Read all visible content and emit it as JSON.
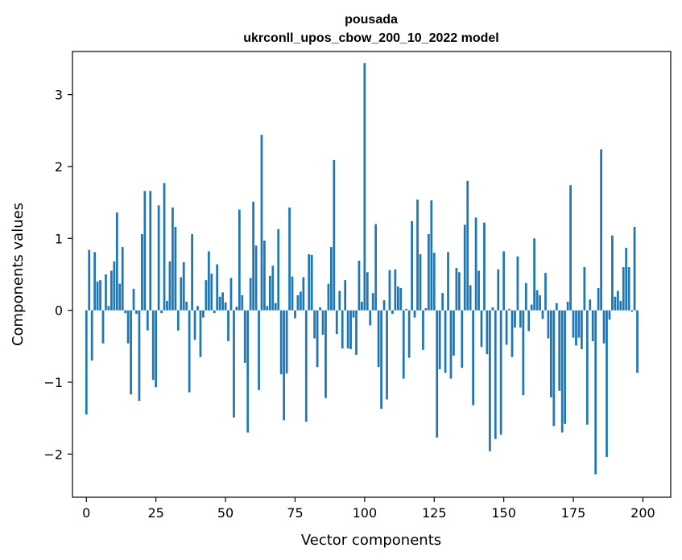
{
  "chart_data": {
    "type": "bar",
    "title": "pousada",
    "subtitle": "ukrconll_upos_cbow_200_10_2022 model",
    "xlabel": "Vector components",
    "ylabel": "Components values",
    "xlim": [
      -5,
      210
    ],
    "ylim": [
      -2.6,
      3.6
    ],
    "xticks": [
      0,
      25,
      50,
      75,
      100,
      125,
      150,
      175,
      200
    ],
    "yticks": [
      -2,
      -1,
      0,
      1,
      2,
      3
    ],
    "xtick_labels": [
      "0",
      "25",
      "50",
      "75",
      "100",
      "125",
      "150",
      "175",
      "200"
    ],
    "ytick_labels": [
      "−2",
      "−1",
      "0",
      "1",
      "2",
      "3"
    ],
    "bar_color": "#1f77b4",
    "grid": false,
    "values": [
      -1.45,
      0.84,
      -0.7,
      0.81,
      0.4,
      0.42,
      -0.46,
      0.5,
      0.06,
      0.55,
      0.68,
      1.36,
      0.37,
      0.88,
      -0.04,
      -0.46,
      -1.17,
      0.3,
      -0.05,
      -1.26,
      1.06,
      1.66,
      -0.28,
      1.66,
      -0.97,
      -1.07,
      1.46,
      -0.04,
      1.77,
      0.13,
      0.68,
      1.43,
      1.16,
      -0.28,
      0.46,
      0.67,
      0.12,
      -1.14,
      1.06,
      -0.41,
      0.06,
      -0.65,
      -0.1,
      0.42,
      0.82,
      0.51,
      -0.04,
      0.64,
      0.19,
      0.25,
      0.11,
      -0.43,
      0.45,
      -1.49,
      0.05,
      1.4,
      0.21,
      -0.73,
      -1.7,
      0.45,
      1.51,
      0.9,
      -1.11,
      2.44,
      0.97,
      0.06,
      0.48,
      0.62,
      0.1,
      1.13,
      -0.89,
      -1.53,
      -0.88,
      1.43,
      0.47,
      -0.11,
      0.21,
      0.26,
      0.46,
      -1.55,
      0.78,
      0.77,
      -0.39,
      -0.79,
      0.04,
      -0.34,
      -1.22,
      0.37,
      0.88,
      2.09,
      -0.33,
      0.27,
      -0.53,
      0.42,
      -0.53,
      -0.54,
      -0.1,
      -0.62,
      0.69,
      0.12,
      3.44,
      0.53,
      -0.21,
      0.24,
      1.2,
      -0.79,
      -1.37,
      0.14,
      -1.24,
      0.56,
      -0.05,
      0.57,
      0.33,
      0.31,
      -0.95,
      0.02,
      -0.66,
      1.24,
      -0.1,
      1.54,
      0.78,
      -0.55,
      0.03,
      1.06,
      1.53,
      0.8,
      -1.77,
      -0.82,
      0.24,
      -0.87,
      0.81,
      -0.95,
      -0.63,
      0.59,
      0.53,
      -0.8,
      1.19,
      1.8,
      0.35,
      -1.32,
      1.29,
      0.55,
      -0.51,
      1.22,
      -0.61,
      -1.96,
      0.04,
      -1.79,
      0.57,
      -1.73,
      0.82,
      -0.48,
      0.02,
      -0.65,
      -0.24,
      0.75,
      -0.24,
      -1.18,
      0.38,
      -0.29,
      0.08,
      1.0,
      0.28,
      0.21,
      -0.12,
      0.52,
      -0.39,
      -1.21,
      -1.61,
      0.1,
      -1.12,
      -1.7,
      -1.58,
      0.12,
      1.74,
      -0.38,
      -0.49,
      -0.38,
      -0.54,
      0.6,
      -1.59,
      0.15,
      -0.43,
      -2.28,
      0.31,
      2.24,
      -0.46,
      -2.04,
      -0.13,
      1.04,
      0.19,
      0.27,
      0.13,
      0.6,
      0.87,
      0.6,
      -0.02,
      1.16,
      -0.87,
      0.0
    ]
  }
}
